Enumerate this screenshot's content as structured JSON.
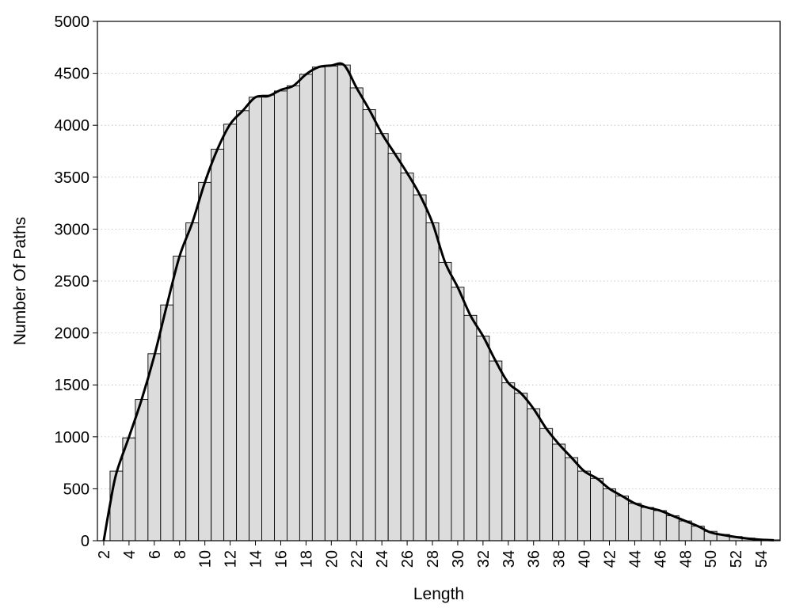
{
  "chart_data": {
    "type": "bar",
    "xlabel": "Length",
    "ylabel": "Number Of Paths",
    "ylim": [
      0,
      5000
    ],
    "yticks": [
      0,
      500,
      1000,
      1500,
      2000,
      2500,
      3000,
      3500,
      4000,
      4500,
      5000
    ],
    "xticks": [
      2,
      4,
      6,
      8,
      10,
      12,
      14,
      16,
      18,
      20,
      22,
      24,
      26,
      28,
      30,
      32,
      34,
      36,
      38,
      40,
      42,
      44,
      46,
      48,
      50,
      52,
      54
    ],
    "grid": "horizontal-dotted",
    "x": [
      3,
      4,
      5,
      6,
      7,
      8,
      9,
      10,
      11,
      12,
      13,
      14,
      15,
      16,
      17,
      18,
      19,
      20,
      21,
      22,
      23,
      24,
      25,
      26,
      27,
      28,
      29,
      30,
      31,
      32,
      33,
      34,
      35,
      36,
      37,
      38,
      39,
      40,
      41,
      42,
      43,
      44,
      45,
      46,
      47,
      48,
      49,
      50,
      51,
      52,
      53,
      54,
      55
    ],
    "values": [
      670,
      990,
      1360,
      1800,
      2270,
      2740,
      3060,
      3450,
      3770,
      4010,
      4140,
      4270,
      4290,
      4330,
      4380,
      4490,
      4560,
      4570,
      4580,
      4360,
      4150,
      3920,
      3730,
      3540,
      3330,
      3060,
      2680,
      2440,
      2170,
      1970,
      1730,
      1520,
      1420,
      1270,
      1080,
      930,
      800,
      670,
      600,
      500,
      430,
      360,
      320,
      290,
      240,
      190,
      140,
      90,
      60,
      40,
      25,
      15,
      8
    ],
    "smooth_curve": {
      "x": [
        2,
        2.5,
        3,
        4,
        5,
        6,
        7,
        8,
        9,
        10,
        11,
        12,
        13,
        14,
        15,
        16,
        17,
        18,
        19,
        20,
        21,
        22,
        23,
        24,
        25,
        26,
        27,
        28,
        29,
        30,
        31,
        32,
        33,
        34,
        35,
        36,
        37,
        38,
        39,
        40,
        41,
        42,
        43,
        44,
        45,
        46,
        47,
        48,
        49,
        50,
        51,
        52,
        53,
        54,
        55
      ],
      "y": [
        0,
        350,
        650,
        1000,
        1360,
        1780,
        2270,
        2740,
        3060,
        3450,
        3770,
        4010,
        4140,
        4270,
        4280,
        4340,
        4380,
        4490,
        4560,
        4575,
        4580,
        4360,
        4150,
        3920,
        3730,
        3540,
        3330,
        3060,
        2680,
        2440,
        2170,
        1970,
        1730,
        1520,
        1420,
        1270,
        1080,
        930,
        800,
        670,
        600,
        500,
        430,
        360,
        320,
        290,
        240,
        190,
        140,
        80,
        55,
        35,
        20,
        10,
        5
      ]
    }
  }
}
